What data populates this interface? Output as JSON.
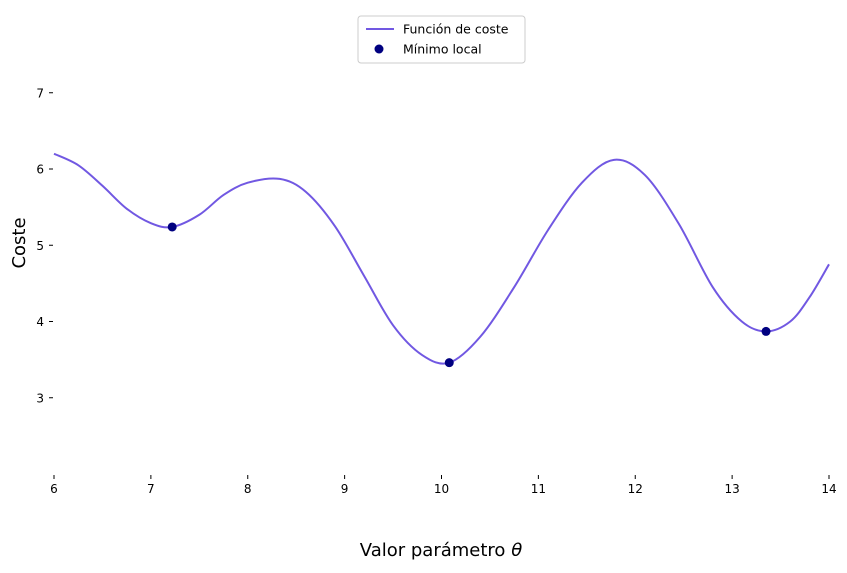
{
  "chart_data": {
    "type": "line",
    "title": "",
    "xlabel": "Valor parámetro",
    "xlabel_symbol": "θ",
    "ylabel": "Coste",
    "xlim": [
      6,
      14
    ],
    "ylim": [
      2.0,
      7.6
    ],
    "x_ticks": [
      6,
      7,
      8,
      9,
      10,
      11,
      12,
      13,
      14
    ],
    "y_ticks": [
      3,
      4,
      5,
      6,
      7
    ],
    "grid": false,
    "legend_position": "top-center",
    "series": [
      {
        "name": "Función de coste",
        "kind": "line",
        "color": "#7158e2",
        "x": [
          6.0,
          6.25,
          6.5,
          6.75,
          7.0,
          7.22,
          7.5,
          7.75,
          8.0,
          8.33,
          8.6,
          8.9,
          9.2,
          9.5,
          9.8,
          10.08,
          10.4,
          10.75,
          11.1,
          11.45,
          11.78,
          12.1,
          12.45,
          12.8,
          13.1,
          13.35,
          13.6,
          13.8,
          14.0
        ],
        "y": [
          6.2,
          6.05,
          5.78,
          5.48,
          5.29,
          5.24,
          5.4,
          5.66,
          5.82,
          5.87,
          5.7,
          5.25,
          4.6,
          3.95,
          3.56,
          3.46,
          3.8,
          4.45,
          5.2,
          5.82,
          6.12,
          5.92,
          5.28,
          4.45,
          4.0,
          3.87,
          4.0,
          4.32,
          4.75
        ]
      },
      {
        "name": "Mínimo local",
        "kind": "scatter",
        "color": "#000080",
        "x": [
          7.22,
          10.08,
          13.35
        ],
        "y": [
          5.24,
          3.46,
          3.87
        ]
      }
    ]
  }
}
